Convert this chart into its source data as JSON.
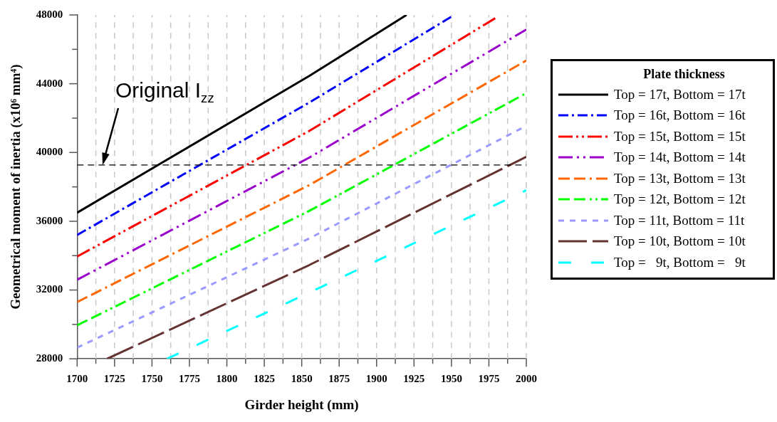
{
  "chart_data": {
    "type": "line",
    "xlabel": "Girder height (mm)",
    "ylabel": "Geometrical moment of inertia (x10⁶ mm⁴)",
    "legend_title": "Plate thickness",
    "legend": "right",
    "grid": "x",
    "xlim": [
      1700,
      2000
    ],
    "xticks": [
      1700,
      {
        "value": 1712.5,
        "label": null
      },
      1725,
      {
        "value": 1737.5,
        "label": null
      },
      1750,
      {
        "value": 1762.5,
        "label": null
      },
      1775,
      {
        "value": 1787.5,
        "label": null
      },
      1800,
      {
        "value": 1812.5,
        "label": null
      },
      1825,
      {
        "value": 1837.5,
        "label": null
      },
      1850,
      {
        "value": 1862.5,
        "label": null
      },
      1875,
      {
        "value": 1887.5,
        "label": null
      },
      1900,
      {
        "value": 1912.5,
        "label": null
      },
      1925,
      {
        "value": 1937.5,
        "label": null
      },
      1950,
      {
        "value": 1962.5,
        "label": null
      },
      1975,
      {
        "value": 1987.5,
        "label": null
      },
      2000
    ],
    "ylim": [
      28000,
      48000
    ],
    "yticks": [
      28000,
      {
        "value": 30000,
        "label": null
      },
      32000,
      {
        "value": 34000,
        "label": null
      },
      36000,
      {
        "value": 38000,
        "label": null
      },
      40000,
      {
        "value": 42000,
        "label": null
      },
      44000,
      {
        "value": 46000,
        "label": null
      },
      48000
    ],
    "ref_lines": [
      {
        "axis": "y",
        "value": 39270,
        "color": "#000000",
        "line_style": "dashed"
      }
    ],
    "annotations": [
      {
        "text": "Original I$_{zz}$",
        "x": 1717,
        "y": 39270
      }
    ],
    "series": [
      {
        "name": "Top = 17t, Bottom = 17t",
        "color": "#000000",
        "line_style": "solid",
        "x": [
          1700,
          1855,
          1920
        ],
        "values": [
          36500,
          44450,
          48000
        ]
      },
      {
        "name": "Top = 16t, Bottom = 16t",
        "color": "#0000ff",
        "line_style": "dashed",
        "x": [
          1700,
          1855,
          1950
        ],
        "values": [
          35200,
          42900,
          47900
        ]
      },
      {
        "name": "Top = 15t, Bottom = 15t",
        "color": "#ff0000",
        "line_style": "dashed",
        "x": [
          1700,
          1855,
          1980
        ],
        "values": [
          33950,
          41250,
          47850
        ]
      },
      {
        "name": "Top = 14t, Bottom = 14t",
        "color": "#9900cc",
        "line_style": "dashed",
        "x": [
          1700,
          1855,
          2000
        ],
        "values": [
          32600,
          39700,
          47150
        ]
      },
      {
        "name": "Top = 13t, Bottom = 13t",
        "color": "#ff6600",
        "line_style": "dashed",
        "x": [
          1700,
          1855,
          2000
        ],
        "values": [
          31300,
          38100,
          45350
        ]
      },
      {
        "name": "Top = 12t, Bottom = 12t",
        "color": "#00ff00",
        "line_style": "dashed",
        "x": [
          1700,
          1855,
          2000
        ],
        "values": [
          29950,
          36600,
          43450
        ]
      },
      {
        "name": "Top = 11t, Bottom = 11t",
        "color": "#9999ff",
        "line_style": "dashed",
        "x": [
          1700,
          1855,
          2000
        ],
        "values": [
          28650,
          35000,
          41550
        ]
      },
      {
        "name": "Top = 10t, Bottom = 10t",
        "color": "#663333",
        "line_style": "dashed",
        "x": [
          1720,
          1855,
          2000
        ],
        "values": [
          28000,
          33450,
          39750
        ]
      },
      {
        "name": "Top =   9t, Bottom =   9t",
        "color": "#00ffff",
        "line_style": "dashed",
        "x": [
          1760,
          1855,
          2000
        ],
        "values": [
          28000,
          31850,
          37800
        ]
      }
    ]
  }
}
